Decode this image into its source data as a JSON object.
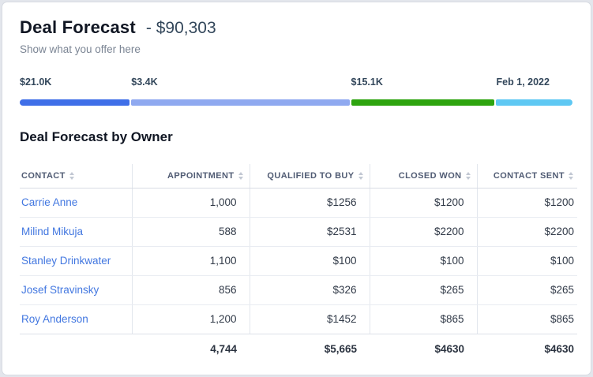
{
  "card": {
    "title": "Deal Forecast",
    "amount": "- $90,303",
    "subtitle": "Show what you offer here"
  },
  "forecast_bar": {
    "segments": [
      {
        "label": "$21.0K",
        "color": "#3f6fe8",
        "width_pct": 19.9,
        "left_pct": 0
      },
      {
        "label": "$3.4K",
        "color": "#8fa9f0",
        "width_pct": 39.4,
        "left_pct": 20.15
      },
      {
        "label": "$15.1K",
        "color": "#2ea40f",
        "width_pct": 25.8,
        "left_pct": 59.85
      },
      {
        "label": "Feb 1, 2022",
        "color": "#5fc8f3",
        "width_pct": 13.9,
        "left_pct": 86.1
      }
    ]
  },
  "table": {
    "title": "Deal Forecast by Owner",
    "columns": [
      {
        "label": "CONTACT",
        "align": "left"
      },
      {
        "label": "APPOINTMENT",
        "align": "right"
      },
      {
        "label": "QUALIFIED TO BUY",
        "align": "right"
      },
      {
        "label": "CLOSED WON",
        "align": "right"
      },
      {
        "label": "CONTACT SENT",
        "align": "right"
      }
    ],
    "rows": [
      [
        "Carrie Anne",
        "1,000",
        "$1256",
        "$1200",
        "$1200"
      ],
      [
        "Milind Mikuja",
        "588",
        "$2531",
        "$2200",
        "$2200"
      ],
      [
        "Stanley Drinkwater",
        "1,100",
        "$100",
        "$100",
        "$100"
      ],
      [
        "Josef Stravinsky",
        "856",
        "$326",
        "$265",
        "$265"
      ],
      [
        "Roy Anderson",
        "1,200",
        "$1452",
        "$865",
        "$865"
      ]
    ],
    "totals": [
      "",
      "4,744",
      "$5,665",
      "$4630",
      "$4630"
    ]
  },
  "colors": {
    "link_blue": "#4277e0",
    "title_text": "#101623",
    "amount_text": "#33475b"
  }
}
